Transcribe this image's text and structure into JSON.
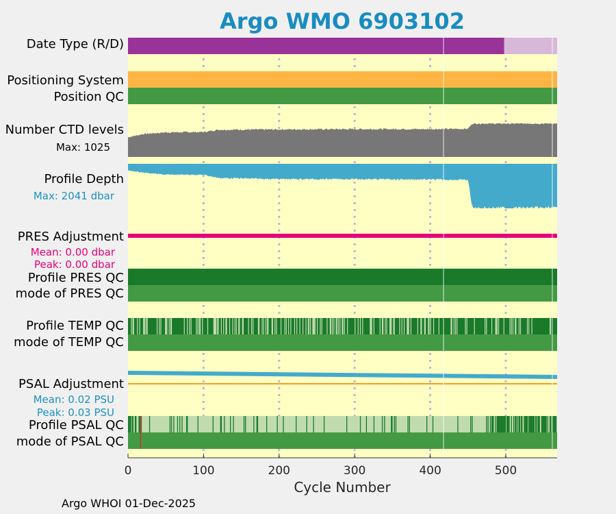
{
  "chart_data": {
    "type": "status-timeline",
    "title": "Argo WMO 6903102",
    "xlabel": "Cycle Number",
    "xlim": [
      0,
      568
    ],
    "xticks": [
      "0",
      "100",
      "200",
      "300",
      "400",
      "500"
    ],
    "xtick_values": [
      0,
      100,
      200,
      300,
      400,
      500
    ],
    "rows": [
      {
        "label": "Date Type (R/D)",
        "segments": [
          {
            "from": 0,
            "to": 498,
            "color": "#993399",
            "legend": "D"
          },
          {
            "from": 498,
            "to": 568,
            "color": "#d8b8d8",
            "legend": "R"
          }
        ]
      },
      {
        "label": "Positioning System",
        "segments": [
          {
            "from": 0,
            "to": 568,
            "color": "#ffb544"
          }
        ]
      },
      {
        "label": "Position QC",
        "segments": [
          {
            "from": 0,
            "to": 568,
            "color": "#449944"
          }
        ]
      },
      {
        "label": "Number CTD levels",
        "note": "Max: 1025",
        "max": 1025
      },
      {
        "label": "Profile Depth",
        "note": "Max: 2041 dbar",
        "max": 2041
      },
      {
        "label": "PRES Adjustment",
        "mean": "Mean: 0.00 dbar",
        "peak": "Peak: 0.00 dbar"
      },
      {
        "label": "Profile PRES QC",
        "segments": [
          {
            "from": 0,
            "to": 568,
            "color": "#1a7a2a"
          }
        ]
      },
      {
        "label": "mode of PRES QC",
        "segments": [
          {
            "from": 0,
            "to": 568,
            "color": "#449944"
          }
        ]
      },
      {
        "label": "Profile TEMP QC"
      },
      {
        "label": "mode of TEMP QC",
        "segments": [
          {
            "from": 0,
            "to": 568,
            "color": "#449944"
          }
        ]
      },
      {
        "label": "PSAL Adjustment",
        "mean": "Mean: 0.02 PSU",
        "peak": "Peak: 0.03 PSU"
      },
      {
        "label": "Profile PSAL QC"
      },
      {
        "label": "mode of PSAL QC",
        "segments": [
          {
            "from": 0,
            "to": 568,
            "color": "#449944"
          }
        ]
      }
    ],
    "ctd_levels": {
      "x": [
        0,
        20,
        50,
        100,
        120,
        200,
        300,
        400,
        450,
        456,
        568
      ],
      "y": [
        600,
        700,
        750,
        760,
        830,
        840,
        850,
        850,
        860,
        1025,
        1025
      ]
    },
    "profile_depth": {
      "x": [
        0,
        20,
        50,
        100,
        120,
        200,
        300,
        400,
        450,
        456,
        568
      ],
      "y": [
        300,
        400,
        500,
        500,
        650,
        700,
        700,
        720,
        740,
        2041,
        2041
      ]
    },
    "psal_adjustment": {
      "x": [
        0,
        568
      ],
      "y": [
        0.03,
        0.01
      ]
    },
    "colors": {
      "background": "#ffffc4",
      "ctd": "#777777",
      "depth": "#44aacc",
      "pres": "#e6007a",
      "psal": "#44aacc",
      "dark_green": "#1a7a2a",
      "mid_green": "#449944",
      "light_green": "#c0dcae"
    }
  },
  "footer": "Argo WHOI 01-Dec-2025"
}
